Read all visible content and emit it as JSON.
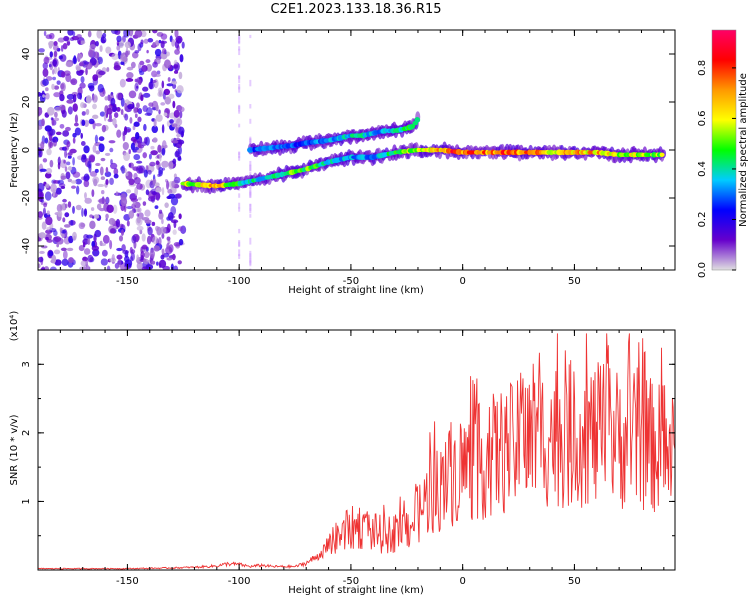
{
  "title": "C2E1.2023.133.18.36.R15",
  "colorbar": {
    "label": "Normalized spectral amplitude",
    "ticks": [
      0.0,
      0.2,
      0.4,
      0.6,
      0.8
    ],
    "tick_labels": [
      "0.0",
      "0.2",
      "0.4",
      "0.6",
      "0.8"
    ],
    "range": [
      0.0,
      0.95
    ],
    "colormap": [
      "#e0e0e0",
      "#6600cc",
      "#0000ff",
      "#00ccff",
      "#00ff00",
      "#ffff00",
      "#ff9900",
      "#ff0000",
      "#ff0066"
    ]
  },
  "chart_data": [
    {
      "type": "heatmap",
      "xlabel": "Height of straight line (km)",
      "ylabel": "Frequency (Hz)",
      "xlim": [
        -190,
        95
      ],
      "ylim": [
        -50,
        50
      ],
      "xticks": [
        -150,
        -100,
        -50,
        0,
        50
      ],
      "yticks": [
        -40,
        -20,
        0,
        20,
        40
      ],
      "grid": false,
      "noise_region_x": [
        -190,
        -125
      ],
      "ridges": [
        {
          "x": [
            -125,
            -110,
            -100,
            -90,
            -80,
            -70,
            -60,
            -50,
            -40,
            -30,
            -20,
            -10,
            0,
            10,
            20,
            30,
            40,
            50,
            60,
            70,
            80,
            90
          ],
          "y": [
            -14,
            -15,
            -14,
            -12,
            -10,
            -8,
            -5,
            -3,
            -3,
            -1,
            0,
            0,
            -1,
            -1,
            -1,
            -1,
            -1,
            -1,
            -1,
            -2,
            -2,
            -2
          ],
          "amplitude": [
            0.55,
            0.7,
            0.45,
            0.4,
            0.5,
            0.55,
            0.4,
            0.35,
            0.35,
            0.5,
            0.6,
            0.75,
            0.85,
            0.8,
            0.8,
            0.75,
            0.7,
            0.75,
            0.7,
            0.6,
            0.6,
            0.55
          ]
        },
        {
          "x": [
            -95,
            -85,
            -75,
            -70,
            -60,
            -50,
            -45,
            -40,
            -35,
            -30,
            -25,
            -22,
            -20
          ],
          "y": [
            0,
            1,
            2,
            3,
            4,
            6,
            6,
            7,
            8,
            8,
            9,
            10,
            13
          ],
          "amplitude": [
            0.3,
            0.35,
            0.3,
            0.3,
            0.35,
            0.4,
            0.4,
            0.35,
            0.35,
            0.4,
            0.45,
            0.5,
            0.55
          ]
        }
      ]
    },
    {
      "type": "line",
      "xlabel": "Height of straight line (km)",
      "ylabel": "SNR (10 * v/v)",
      "yunit": "(x10⁴)",
      "xlim": [
        -190,
        95
      ],
      "ylim": [
        0,
        3.5
      ],
      "xticks": [
        -150,
        -100,
        -50,
        0,
        50
      ],
      "yticks": [
        1,
        2,
        3
      ],
      "color": "#ee3333",
      "grid": false,
      "series": [
        {
          "x": [
            -190,
            -170,
            -150,
            -130,
            -120,
            -110,
            -105,
            -100,
            -95,
            -90,
            -85,
            -80,
            -75,
            -70,
            -65,
            -60,
            -55,
            -50,
            -45,
            -40,
            -35,
            -30,
            -25,
            -20,
            -15,
            -10,
            -5,
            0,
            5,
            10,
            15,
            20,
            25,
            30,
            35,
            40,
            45,
            50,
            55,
            60,
            65,
            70,
            75,
            80,
            85,
            90,
            95
          ],
          "y": [
            0.02,
            0.02,
            0.02,
            0.03,
            0.04,
            0.06,
            0.09,
            0.08,
            0.05,
            0.07,
            0.05,
            0.05,
            0.05,
            0.1,
            0.2,
            0.35,
            0.5,
            0.6,
            0.65,
            0.55,
            0.5,
            0.55,
            0.6,
            0.8,
            1.1,
            1.2,
            1.4,
            1.5,
            1.55,
            1.6,
            1.7,
            1.75,
            1.8,
            1.9,
            1.95,
            2.0,
            1.95,
            2.0,
            2.0,
            1.95,
            2.0,
            1.9,
            1.95,
            1.9,
            1.8,
            1.75,
            1.7
          ]
        }
      ]
    }
  ]
}
